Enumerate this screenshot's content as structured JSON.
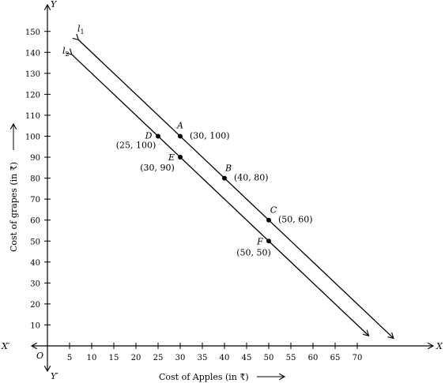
{
  "chart_data": {
    "type": "line",
    "xlabel": "Cost of Apples (in ₹)",
    "ylabel": "Cost of grapes (in ₹)",
    "xlim": [
      0,
      75
    ],
    "ylim": [
      0,
      155
    ],
    "x_ticks": [
      5,
      10,
      15,
      20,
      25,
      30,
      35,
      40,
      45,
      50,
      55,
      60,
      65,
      70
    ],
    "y_ticks": [
      10,
      20,
      30,
      40,
      50,
      60,
      70,
      80,
      90,
      100,
      110,
      120,
      130,
      140,
      150
    ],
    "axis_names": {
      "x": "X",
      "x_neg": "X′",
      "y": "Y",
      "y_neg": "Y′",
      "origin": "O"
    },
    "grid": false,
    "series": [
      {
        "name": "l1",
        "label_main": "l",
        "label_sub": "1",
        "equation": "y = 160 - 2x",
        "x_start": 7,
        "x_end": 78.2
      },
      {
        "name": "l2",
        "label_main": "l",
        "label_sub": "2",
        "equation": "y = 150 - 2x",
        "x_start": 5.5,
        "x_end": 72.6
      }
    ],
    "points": [
      {
        "name": "A",
        "x": 30,
        "y": 100,
        "coord": "(30, 100)"
      },
      {
        "name": "B",
        "x": 40,
        "y": 80,
        "coord": "(40, 80)"
      },
      {
        "name": "C",
        "x": 50,
        "y": 60,
        "coord": "(50, 60)"
      },
      {
        "name": "D",
        "x": 25,
        "y": 100,
        "coord": "(25, 100)"
      },
      {
        "name": "E",
        "x": 30,
        "y": 90,
        "coord": "(30, 90)"
      },
      {
        "name": "F",
        "x": 50,
        "y": 50,
        "coord": "(50, 50)"
      }
    ]
  }
}
